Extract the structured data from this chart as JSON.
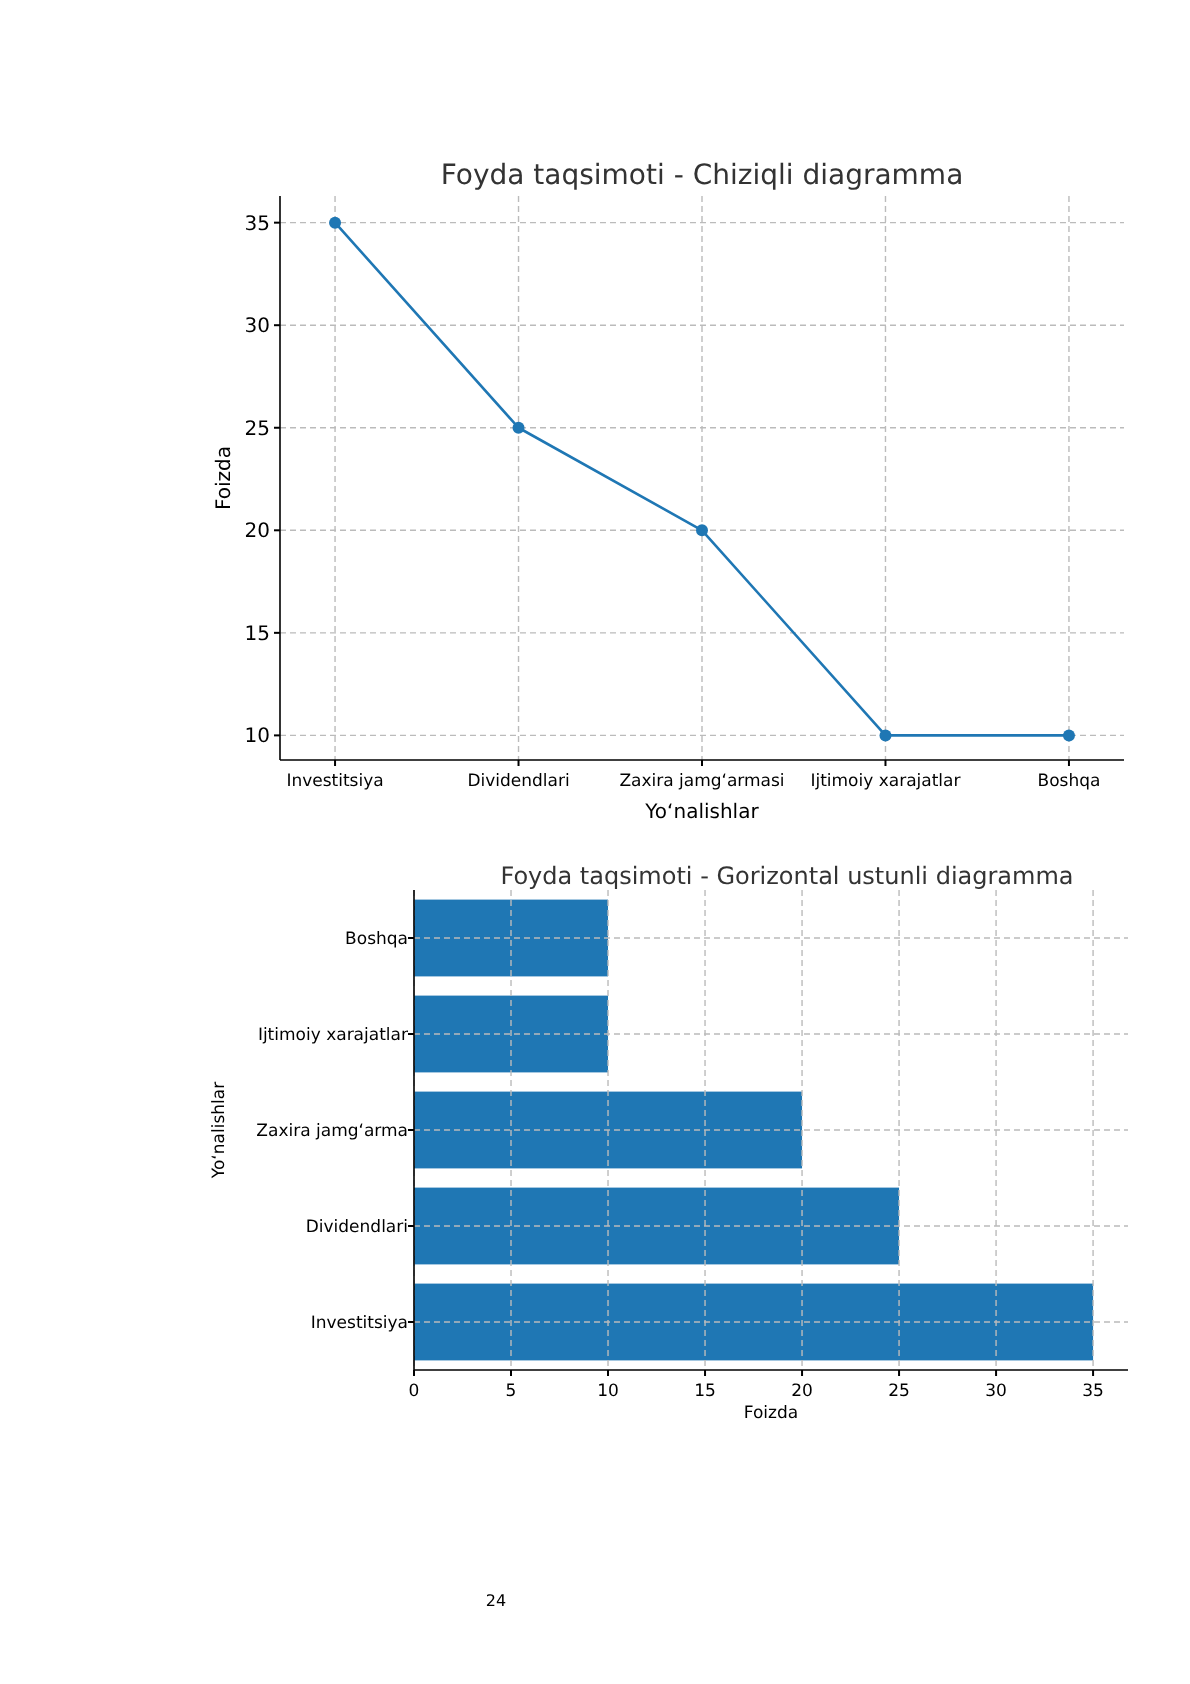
{
  "chart_data": [
    {
      "type": "line",
      "title": "Foyda taqsimoti - Chiziqli diagramma",
      "xlabel": "Yo‘nalishlar",
      "ylabel": "Foizda",
      "categories": [
        "Investitsiya",
        "Dividendlari",
        "Zaxira jamg‘armasi",
        "Ijtimoiy xarajatlar",
        "Boshqa"
      ],
      "series": [
        {
          "color": "#1f77b4",
          "values": [
            35,
            25,
            20,
            10,
            10
          ]
        }
      ],
      "ylim": [
        8.8,
        36.3
      ],
      "yticks": [
        10,
        15,
        20,
        25,
        30,
        35
      ],
      "grid": true,
      "marker": "circle",
      "line_style": "solid"
    },
    {
      "type": "bar",
      "orientation": "horizontal",
      "title": "Foyda taqsimoti - Gorizontal ustunli diagramma",
      "xlabel": "Foizda",
      "ylabel": "Yo‘nalishlar",
      "categories": [
        "Boshqa",
        "Ijtimoiy xarajatlar",
        "Zaxira jamg‘arma",
        "Dividendlari",
        "Investitsiya"
      ],
      "series": [
        {
          "color": "#1f77b4",
          "values": [
            10,
            10,
            20,
            25,
            35
          ]
        }
      ],
      "xlim": [
        0,
        36.8
      ],
      "xticks": [
        0,
        5,
        10,
        15,
        20,
        25,
        30,
        35
      ],
      "grid": true,
      "annotations": [
        "24"
      ]
    }
  ]
}
